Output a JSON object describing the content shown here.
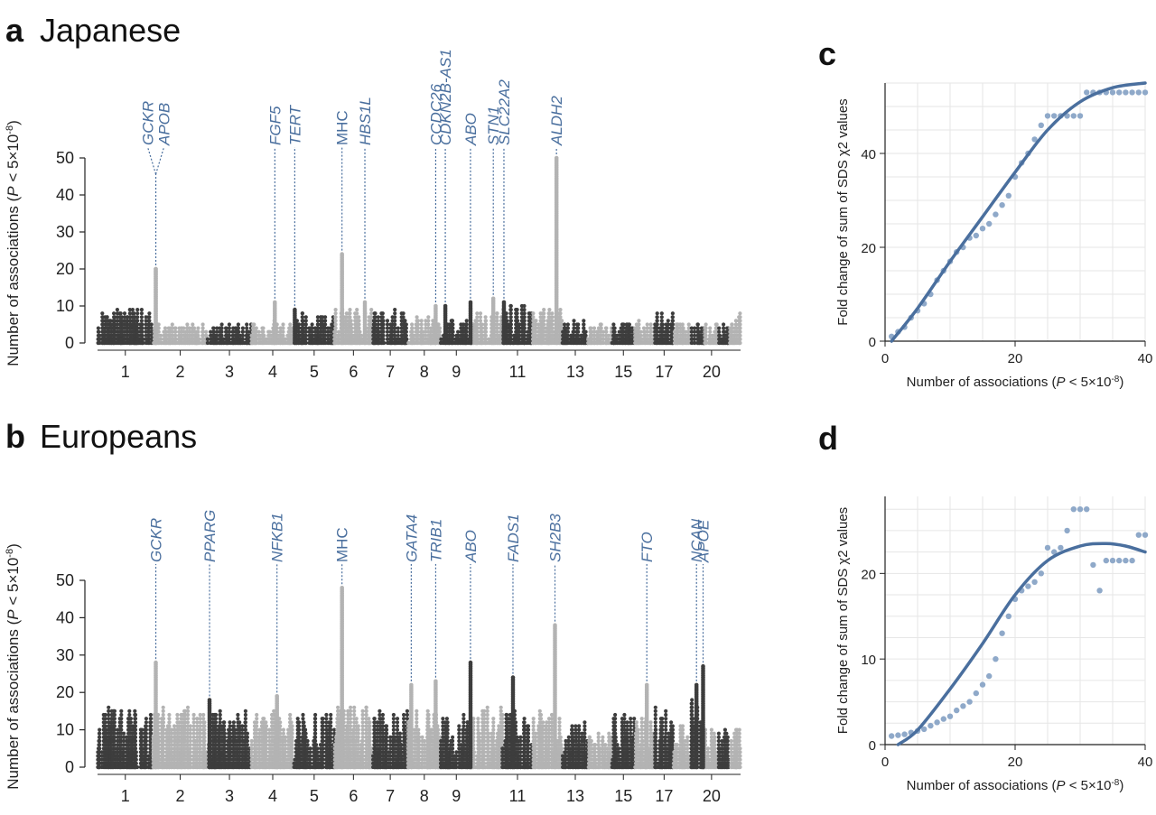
{
  "panels": {
    "a": {
      "letter": "a",
      "title": "Japanese"
    },
    "b": {
      "letter": "b",
      "title": "Europeans"
    },
    "c": {
      "letter": "c"
    },
    "d": {
      "letter": "d"
    }
  },
  "colors": {
    "dark": "#3d3d3d",
    "light": "#b3b3b3",
    "blue": "#4a6f9e",
    "blue_point": "#8fa9c9",
    "grid": "#e6e6e6"
  },
  "chart_data": [
    {
      "id": "a",
      "type": "scatter",
      "title": "Japanese",
      "ylabel_pre": "Number of associations (",
      "ylabel_p": "P",
      "ylabel_post": " < 5×10",
      "ylabel_exp": "-8",
      "ylabel_close": ")",
      "ylim": [
        0,
        50
      ],
      "yticks": [
        0,
        10,
        20,
        30,
        40,
        50
      ],
      "chromosomes": [
        "1",
        "2",
        "3",
        "4",
        "5",
        "6",
        "7",
        "8",
        "9",
        "10",
        "11",
        "12",
        "13",
        "14",
        "15",
        "16",
        "17",
        "18",
        "19",
        "20",
        "21",
        "22"
      ],
      "chrom_tick_labels": [
        "1",
        "2",
        "3",
        "4",
        "5",
        "6",
        "7",
        "8",
        "9",
        "11",
        "13",
        "15",
        "17",
        "20"
      ],
      "annotations": [
        {
          "gene": "GCKR",
          "chrom": 2,
          "pos": 0.05,
          "count": 20
        },
        {
          "gene": "APOB",
          "chrom": 2,
          "pos": 0.05,
          "count": 20
        },
        {
          "gene": "FGF5",
          "chrom": 4,
          "pos": 0.55,
          "count": 11
        },
        {
          "gene": "TERT",
          "chrom": 5,
          "pos": 0.02,
          "count": 9
        },
        {
          "gene": "MHC",
          "chrom": 6,
          "pos": 0.2,
          "count": 24
        },
        {
          "gene": "HBS1L",
          "chrom": 6,
          "pos": 0.8,
          "count": 11
        },
        {
          "gene": "CCDC26",
          "chrom": 8,
          "pos": 0.85,
          "count": 10
        },
        {
          "gene": "CDKN2B-AS1",
          "chrom": 9,
          "pos": 0.15,
          "count": 10
        },
        {
          "gene": "ABO",
          "chrom": 9,
          "pos": 0.95,
          "count": 11
        },
        {
          "gene": "STN1",
          "chrom": 10,
          "pos": 0.7,
          "count": 12
        },
        {
          "gene": "SLC22A2",
          "chrom": 11,
          "pos": 0.05,
          "count": 11
        },
        {
          "gene": "ALDH2",
          "chrom": 12,
          "pos": 0.8,
          "count": 50
        }
      ],
      "baseline_max_counts": [
        9,
        5,
        5,
        6,
        8,
        10,
        9,
        7,
        7,
        8,
        11,
        10,
        6,
        5,
        5,
        6,
        8,
        5,
        5,
        6,
        5,
        8
      ]
    },
    {
      "id": "b",
      "type": "scatter",
      "title": "Europeans",
      "ylabel_pre": "Number of associations (",
      "ylabel_p": "P",
      "ylabel_post": " < 5×10",
      "ylabel_exp": "-8",
      "ylabel_close": ")",
      "ylim": [
        0,
        50
      ],
      "yticks": [
        0,
        10,
        20,
        30,
        40,
        50
      ],
      "chromosomes": [
        "1",
        "2",
        "3",
        "4",
        "5",
        "6",
        "7",
        "8",
        "9",
        "10",
        "11",
        "12",
        "13",
        "14",
        "15",
        "16",
        "17",
        "18",
        "19",
        "20",
        "21",
        "22"
      ],
      "chrom_tick_labels": [
        "1",
        "2",
        "3",
        "4",
        "5",
        "6",
        "7",
        "8",
        "9",
        "11",
        "13",
        "15",
        "17",
        "20"
      ],
      "annotations": [
        {
          "gene": "GCKR",
          "chrom": 2,
          "pos": 0.05,
          "count": 28
        },
        {
          "gene": "PPARG",
          "chrom": 3,
          "pos": 0.05,
          "count": 18
        },
        {
          "gene": "NFKB1",
          "chrom": 4,
          "pos": 0.6,
          "count": 19
        },
        {
          "gene": "MHC",
          "chrom": 6,
          "pos": 0.2,
          "count": 48
        },
        {
          "gene": "GATA4",
          "chrom": 8,
          "pos": 0.1,
          "count": 22
        },
        {
          "gene": "TRIB1",
          "chrom": 8,
          "pos": 0.85,
          "count": 23
        },
        {
          "gene": "ABO",
          "chrom": 9,
          "pos": 0.95,
          "count": 28
        },
        {
          "gene": "FADS1",
          "chrom": 11,
          "pos": 0.35,
          "count": 24
        },
        {
          "gene": "SH2B3",
          "chrom": 12,
          "pos": 0.75,
          "count": 38
        },
        {
          "gene": "FTO",
          "chrom": 16,
          "pos": 0.6,
          "count": 22
        },
        {
          "gene": "NCAN",
          "chrom": 19,
          "pos": 0.4,
          "count": 22
        },
        {
          "gene": "APOE",
          "chrom": 19,
          "pos": 0.9,
          "count": 27
        }
      ],
      "baseline_max_counts": [
        16,
        16,
        15,
        15,
        14,
        17,
        17,
        15,
        14,
        16,
        17,
        15,
        12,
        10,
        14,
        14,
        16,
        11,
        18,
        11,
        10,
        12
      ]
    },
    {
      "id": "c",
      "type": "scatter",
      "xlabel_pre": "Number of associations (",
      "xlabel_p": "P",
      "xlabel_post": " < 5×10",
      "xlabel_exp": "-8",
      "xlabel_close": ")",
      "ylabel_pre": "Fold change of sum of SDS ",
      "ylabel_chi": "χ2",
      "ylabel_post": " values",
      "xlim": [
        0,
        40
      ],
      "ylim": [
        0,
        55
      ],
      "xticks": [
        0,
        20,
        40
      ],
      "yticks": [
        0,
        20,
        40
      ],
      "grid": true,
      "points": [
        [
          1,
          1
        ],
        [
          2,
          2
        ],
        [
          3,
          3
        ],
        [
          4,
          5
        ],
        [
          5,
          6.5
        ],
        [
          6,
          8
        ],
        [
          7,
          10
        ],
        [
          8,
          13
        ],
        [
          9,
          15
        ],
        [
          10,
          17
        ],
        [
          11,
          19
        ],
        [
          12,
          20
        ],
        [
          13,
          22
        ],
        [
          14,
          22.5
        ],
        [
          15,
          24
        ],
        [
          16,
          25
        ],
        [
          17,
          27
        ],
        [
          18,
          29
        ],
        [
          19,
          31
        ],
        [
          20,
          35
        ],
        [
          21,
          38
        ],
        [
          22,
          40
        ],
        [
          23,
          43
        ],
        [
          24,
          46
        ],
        [
          25,
          48
        ],
        [
          26,
          48
        ],
        [
          27,
          48
        ],
        [
          28,
          48
        ],
        [
          29,
          48
        ],
        [
          30,
          48
        ],
        [
          31,
          53
        ],
        [
          32,
          53
        ],
        [
          33,
          53
        ],
        [
          34,
          53
        ],
        [
          35,
          53
        ],
        [
          36,
          53
        ],
        [
          37,
          53
        ],
        [
          38,
          53
        ],
        [
          39,
          53
        ],
        [
          40,
          53
        ]
      ],
      "fit": [
        [
          1,
          0
        ],
        [
          5,
          7
        ],
        [
          10,
          17
        ],
        [
          15,
          26.5
        ],
        [
          20,
          36
        ],
        [
          25,
          45
        ],
        [
          30,
          51
        ],
        [
          35,
          54
        ],
        [
          40,
          55
        ]
      ]
    },
    {
      "id": "d",
      "type": "scatter",
      "xlabel_pre": "Number of associations (",
      "xlabel_p": "P",
      "xlabel_post": " < 5×10",
      "xlabel_exp": "-8",
      "xlabel_close": ")",
      "ylabel_pre": "Fold change of sum of SDS ",
      "ylabel_chi": "χ2",
      "ylabel_post": " values",
      "xlim": [
        0,
        40
      ],
      "ylim": [
        0,
        29
      ],
      "xticks": [
        0,
        20,
        40
      ],
      "yticks": [
        0,
        10,
        20
      ],
      "grid": true,
      "points": [
        [
          1,
          1
        ],
        [
          2,
          1.1
        ],
        [
          3,
          1.2
        ],
        [
          4,
          1.4
        ],
        [
          5,
          1.6
        ],
        [
          6,
          1.8
        ],
        [
          7,
          2.2
        ],
        [
          8,
          2.6
        ],
        [
          9,
          3
        ],
        [
          10,
          3.3
        ],
        [
          11,
          4
        ],
        [
          12,
          4.5
        ],
        [
          13,
          5
        ],
        [
          14,
          6
        ],
        [
          15,
          7
        ],
        [
          16,
          8
        ],
        [
          17,
          10
        ],
        [
          18,
          13
        ],
        [
          19,
          15
        ],
        [
          20,
          17
        ],
        [
          21,
          18
        ],
        [
          22,
          18.5
        ],
        [
          23,
          19
        ],
        [
          24,
          20
        ],
        [
          25,
          23
        ],
        [
          26,
          22.5
        ],
        [
          27,
          23
        ],
        [
          28,
          25
        ],
        [
          29,
          27.5
        ],
        [
          30,
          27.5
        ],
        [
          31,
          27.5
        ],
        [
          32,
          21
        ],
        [
          33,
          18
        ],
        [
          34,
          21.5
        ],
        [
          35,
          21.5
        ],
        [
          36,
          21.5
        ],
        [
          37,
          21.5
        ],
        [
          38,
          21.5
        ],
        [
          39,
          24.5
        ],
        [
          40,
          24.5
        ]
      ],
      "fit": [
        [
          2,
          0
        ],
        [
          5,
          1.7
        ],
        [
          10,
          6.5
        ],
        [
          15,
          11.8
        ],
        [
          20,
          17.5
        ],
        [
          25,
          21.5
        ],
        [
          30,
          23.2
        ],
        [
          34,
          23.5
        ],
        [
          37,
          23.2
        ],
        [
          40,
          22.5
        ]
      ]
    }
  ]
}
